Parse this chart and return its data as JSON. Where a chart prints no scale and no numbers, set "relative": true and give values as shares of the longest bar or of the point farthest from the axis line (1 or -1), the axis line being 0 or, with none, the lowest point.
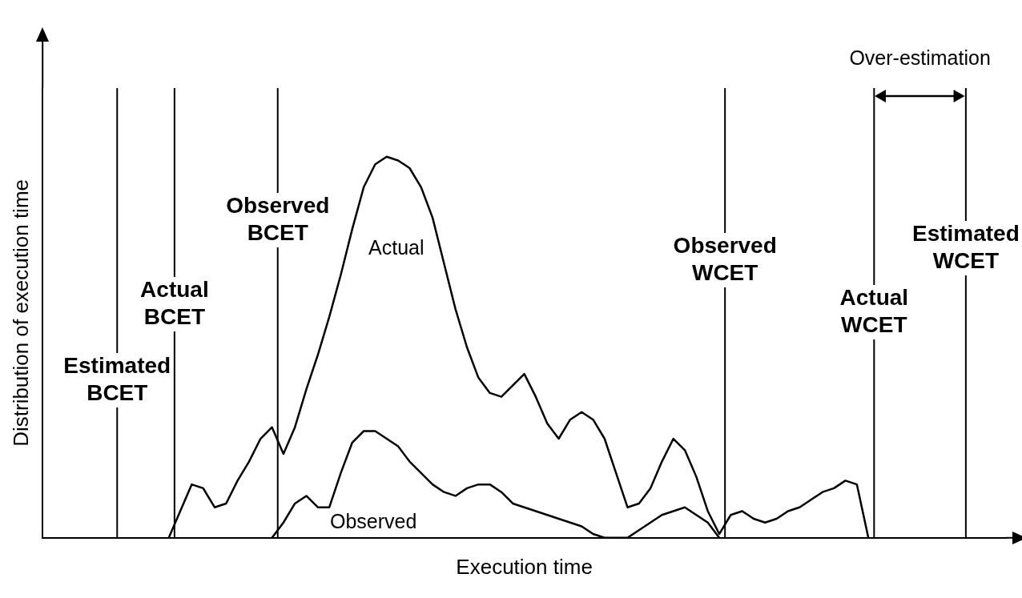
{
  "chart_data": {
    "type": "line",
    "relative": true,
    "xlabel": "Execution time",
    "ylabel": "Distribution of execution time",
    "tick_labels": false,
    "grid": false,
    "legend": false,
    "marker": "none",
    "line_style": "solid",
    "categories": [
      null,
      null,
      null,
      null,
      null,
      null,
      null,
      null,
      null,
      null,
      null,
      null,
      null,
      null,
      null,
      null,
      null,
      null,
      null,
      null,
      null,
      null,
      null,
      null,
      null,
      null,
      null,
      null,
      null,
      null,
      null,
      null,
      null,
      null,
      null,
      null,
      null,
      null,
      null,
      null,
      null,
      null,
      null,
      null,
      null,
      null,
      null,
      null,
      null,
      null,
      null,
      null,
      null,
      null,
      null,
      null,
      null,
      null,
      null,
      null,
      null,
      null,
      null,
      null,
      null,
      null,
      null,
      null,
      null,
      null,
      null,
      null,
      null,
      null,
      null,
      null,
      null,
      null,
      null,
      null,
      null,
      null,
      null,
      null,
      null
    ],
    "series": [
      {
        "name": "Actual",
        "color": "#000000",
        "values": [
          null,
          null,
          null,
          null,
          null,
          null,
          null,
          null,
          null,
          null,
          null,
          0,
          0.07,
          0.14,
          0.13,
          0.08,
          0.09,
          0.15,
          0.2,
          0.26,
          0.29,
          0.22,
          0.29,
          0.39,
          0.48,
          0.58,
          0.69,
          0.81,
          0.92,
          0.98,
          1,
          0.99,
          0.97,
          0.92,
          0.84,
          0.72,
          0.6,
          0.5,
          0.42,
          0.38,
          0.37,
          0.4,
          0.43,
          0.37,
          0.3,
          0.26,
          0.31,
          0.33,
          0.31,
          0.26,
          0.17,
          0.08,
          0.09,
          0.13,
          0.2,
          0.26,
          0.23,
          0.16,
          0.07,
          0.01,
          0.06,
          0.07,
          0.05,
          0.04,
          0.05,
          0.07,
          0.08,
          0.1,
          0.12,
          0.13,
          0.15,
          0.14,
          0,
          null,
          null,
          null,
          null,
          null,
          null,
          null,
          null,
          null,
          null,
          null,
          null
        ]
      },
      {
        "name": "Observed",
        "color": "#000000",
        "values": [
          null,
          null,
          null,
          null,
          null,
          null,
          null,
          null,
          null,
          null,
          null,
          null,
          null,
          null,
          null,
          null,
          null,
          null,
          null,
          null,
          0,
          0.04,
          0.09,
          0.11,
          0.08,
          0.08,
          0.17,
          0.25,
          0.28,
          0.28,
          0.26,
          0.24,
          0.2,
          0.17,
          0.14,
          0.12,
          0.11,
          0.13,
          0.14,
          0.14,
          0.12,
          0.09,
          0.08,
          0.07,
          0.06,
          0.05,
          0.04,
          0.03,
          0.01,
          0,
          0,
          0,
          0.02,
          0.04,
          0.06,
          0.07,
          0.08,
          0.06,
          0.04,
          0,
          null,
          null,
          null,
          null,
          null,
          null,
          null,
          null,
          null,
          null,
          null,
          null,
          null,
          null,
          null,
          null,
          null,
          null,
          null,
          null,
          null,
          null,
          null,
          null,
          null
        ]
      }
    ],
    "annotations": [
      "Estimated BCET",
      "Actual BCET",
      "Observed BCET",
      "Observed WCET",
      "Actual WCET",
      "Estimated WCET",
      "Over-estimation"
    ]
  }
}
